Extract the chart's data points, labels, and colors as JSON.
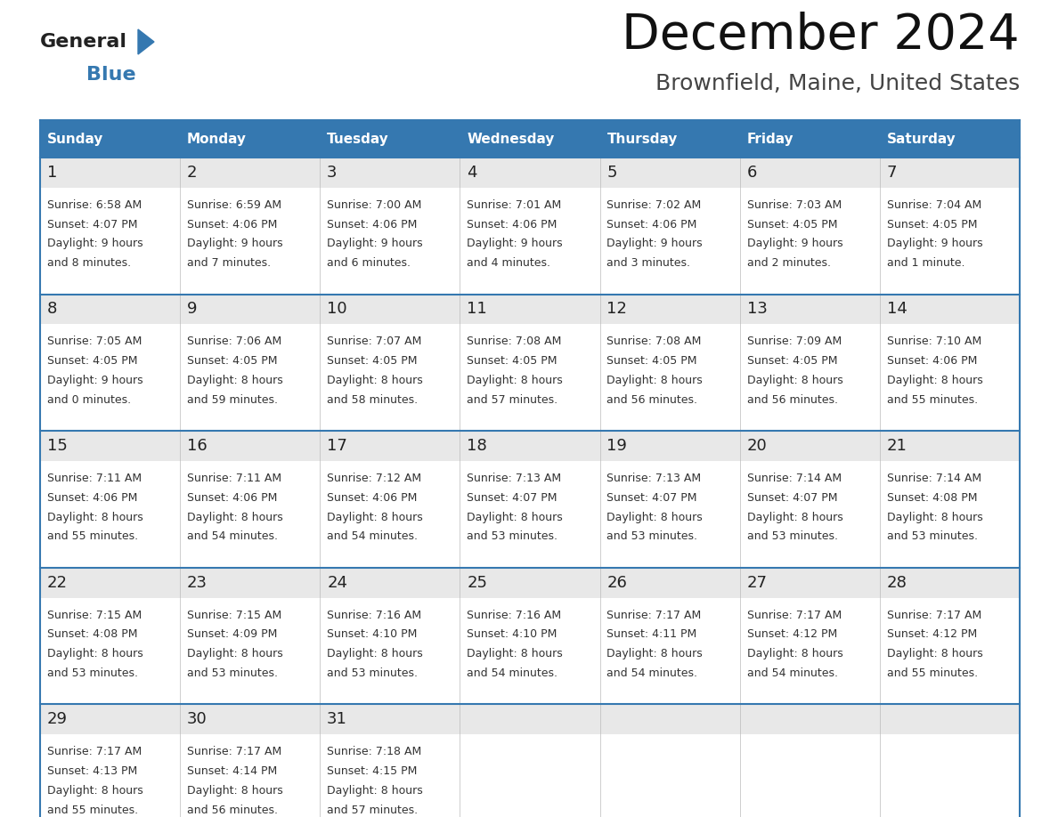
{
  "title": "December 2024",
  "subtitle": "Brownfield, Maine, United States",
  "header_bg_color": "#3578b0",
  "header_text_color": "#ffffff",
  "day_headers": [
    "Sunday",
    "Monday",
    "Tuesday",
    "Wednesday",
    "Thursday",
    "Friday",
    "Saturday"
  ],
  "row_bg_daynum": "#e8e8e8",
  "row_bg_content": "#ffffff",
  "cell_border_color": "#3578b0",
  "text_color": "#333333",
  "date_color": "#222222",
  "calendar_data": [
    [
      {
        "day": 1,
        "sunrise": "6:58 AM",
        "sunset": "4:07 PM",
        "daylight": "9 hours\nand 8 minutes."
      },
      {
        "day": 2,
        "sunrise": "6:59 AM",
        "sunset": "4:06 PM",
        "daylight": "9 hours\nand 7 minutes."
      },
      {
        "day": 3,
        "sunrise": "7:00 AM",
        "sunset": "4:06 PM",
        "daylight": "9 hours\nand 6 minutes."
      },
      {
        "day": 4,
        "sunrise": "7:01 AM",
        "sunset": "4:06 PM",
        "daylight": "9 hours\nand 4 minutes."
      },
      {
        "day": 5,
        "sunrise": "7:02 AM",
        "sunset": "4:06 PM",
        "daylight": "9 hours\nand 3 minutes."
      },
      {
        "day": 6,
        "sunrise": "7:03 AM",
        "sunset": "4:05 PM",
        "daylight": "9 hours\nand 2 minutes."
      },
      {
        "day": 7,
        "sunrise": "7:04 AM",
        "sunset": "4:05 PM",
        "daylight": "9 hours\nand 1 minute."
      }
    ],
    [
      {
        "day": 8,
        "sunrise": "7:05 AM",
        "sunset": "4:05 PM",
        "daylight": "9 hours\nand 0 minutes."
      },
      {
        "day": 9,
        "sunrise": "7:06 AM",
        "sunset": "4:05 PM",
        "daylight": "8 hours\nand 59 minutes."
      },
      {
        "day": 10,
        "sunrise": "7:07 AM",
        "sunset": "4:05 PM",
        "daylight": "8 hours\nand 58 minutes."
      },
      {
        "day": 11,
        "sunrise": "7:08 AM",
        "sunset": "4:05 PM",
        "daylight": "8 hours\nand 57 minutes."
      },
      {
        "day": 12,
        "sunrise": "7:08 AM",
        "sunset": "4:05 PM",
        "daylight": "8 hours\nand 56 minutes."
      },
      {
        "day": 13,
        "sunrise": "7:09 AM",
        "sunset": "4:05 PM",
        "daylight": "8 hours\nand 56 minutes."
      },
      {
        "day": 14,
        "sunrise": "7:10 AM",
        "sunset": "4:06 PM",
        "daylight": "8 hours\nand 55 minutes."
      }
    ],
    [
      {
        "day": 15,
        "sunrise": "7:11 AM",
        "sunset": "4:06 PM",
        "daylight": "8 hours\nand 55 minutes."
      },
      {
        "day": 16,
        "sunrise": "7:11 AM",
        "sunset": "4:06 PM",
        "daylight": "8 hours\nand 54 minutes."
      },
      {
        "day": 17,
        "sunrise": "7:12 AM",
        "sunset": "4:06 PM",
        "daylight": "8 hours\nand 54 minutes."
      },
      {
        "day": 18,
        "sunrise": "7:13 AM",
        "sunset": "4:07 PM",
        "daylight": "8 hours\nand 53 minutes."
      },
      {
        "day": 19,
        "sunrise": "7:13 AM",
        "sunset": "4:07 PM",
        "daylight": "8 hours\nand 53 minutes."
      },
      {
        "day": 20,
        "sunrise": "7:14 AM",
        "sunset": "4:07 PM",
        "daylight": "8 hours\nand 53 minutes."
      },
      {
        "day": 21,
        "sunrise": "7:14 AM",
        "sunset": "4:08 PM",
        "daylight": "8 hours\nand 53 minutes."
      }
    ],
    [
      {
        "day": 22,
        "sunrise": "7:15 AM",
        "sunset": "4:08 PM",
        "daylight": "8 hours\nand 53 minutes."
      },
      {
        "day": 23,
        "sunrise": "7:15 AM",
        "sunset": "4:09 PM",
        "daylight": "8 hours\nand 53 minutes."
      },
      {
        "day": 24,
        "sunrise": "7:16 AM",
        "sunset": "4:10 PM",
        "daylight": "8 hours\nand 53 minutes."
      },
      {
        "day": 25,
        "sunrise": "7:16 AM",
        "sunset": "4:10 PM",
        "daylight": "8 hours\nand 54 minutes."
      },
      {
        "day": 26,
        "sunrise": "7:17 AM",
        "sunset": "4:11 PM",
        "daylight": "8 hours\nand 54 minutes."
      },
      {
        "day": 27,
        "sunrise": "7:17 AM",
        "sunset": "4:12 PM",
        "daylight": "8 hours\nand 54 minutes."
      },
      {
        "day": 28,
        "sunrise": "7:17 AM",
        "sunset": "4:12 PM",
        "daylight": "8 hours\nand 55 minutes."
      }
    ],
    [
      {
        "day": 29,
        "sunrise": "7:17 AM",
        "sunset": "4:13 PM",
        "daylight": "8 hours\nand 55 minutes."
      },
      {
        "day": 30,
        "sunrise": "7:17 AM",
        "sunset": "4:14 PM",
        "daylight": "8 hours\nand 56 minutes."
      },
      {
        "day": 31,
        "sunrise": "7:18 AM",
        "sunset": "4:15 PM",
        "daylight": "8 hours\nand 57 minutes."
      },
      null,
      null,
      null,
      null
    ]
  ],
  "logo_text1": "General",
  "logo_text2": "Blue",
  "logo_text1_color": "#222222",
  "logo_text2_color": "#3578b0",
  "logo_triangle_color": "#3578b0",
  "title_fontsize": 40,
  "subtitle_fontsize": 18,
  "header_fontsize": 11,
  "day_num_fontsize": 13,
  "cell_fontsize": 9
}
